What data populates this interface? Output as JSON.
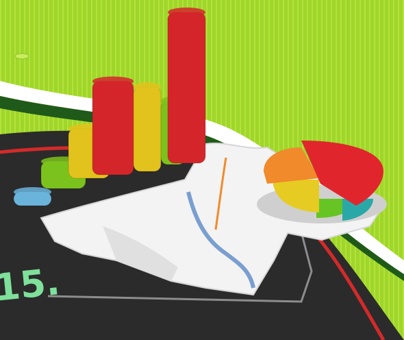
{
  "illustration": {
    "corner_text": "15.",
    "palette": {
      "background_green": "#9fd62a",
      "stripe_green": "#c3e84a",
      "road_dark": "#2b2b2b",
      "swoosh_red": "#d42a2a",
      "paper_white": "#f3f3f3",
      "bar_blue": "#6ab4dc",
      "bar_green": "#7cc21c",
      "bar_yellow": "#e2c21c",
      "bar_red": "#d4262a",
      "pie_orange": "#f08a2a",
      "pie_red": "#e0262c",
      "pie_yellow": "#e6cc22",
      "pie_green": "#66c424",
      "pie_teal": "#2aa8a8",
      "text_green": "#7ee09a"
    },
    "bar_levels": [
      0.08,
      0.18,
      0.33,
      0.62,
      0.56,
      0.42,
      1.0
    ]
  }
}
